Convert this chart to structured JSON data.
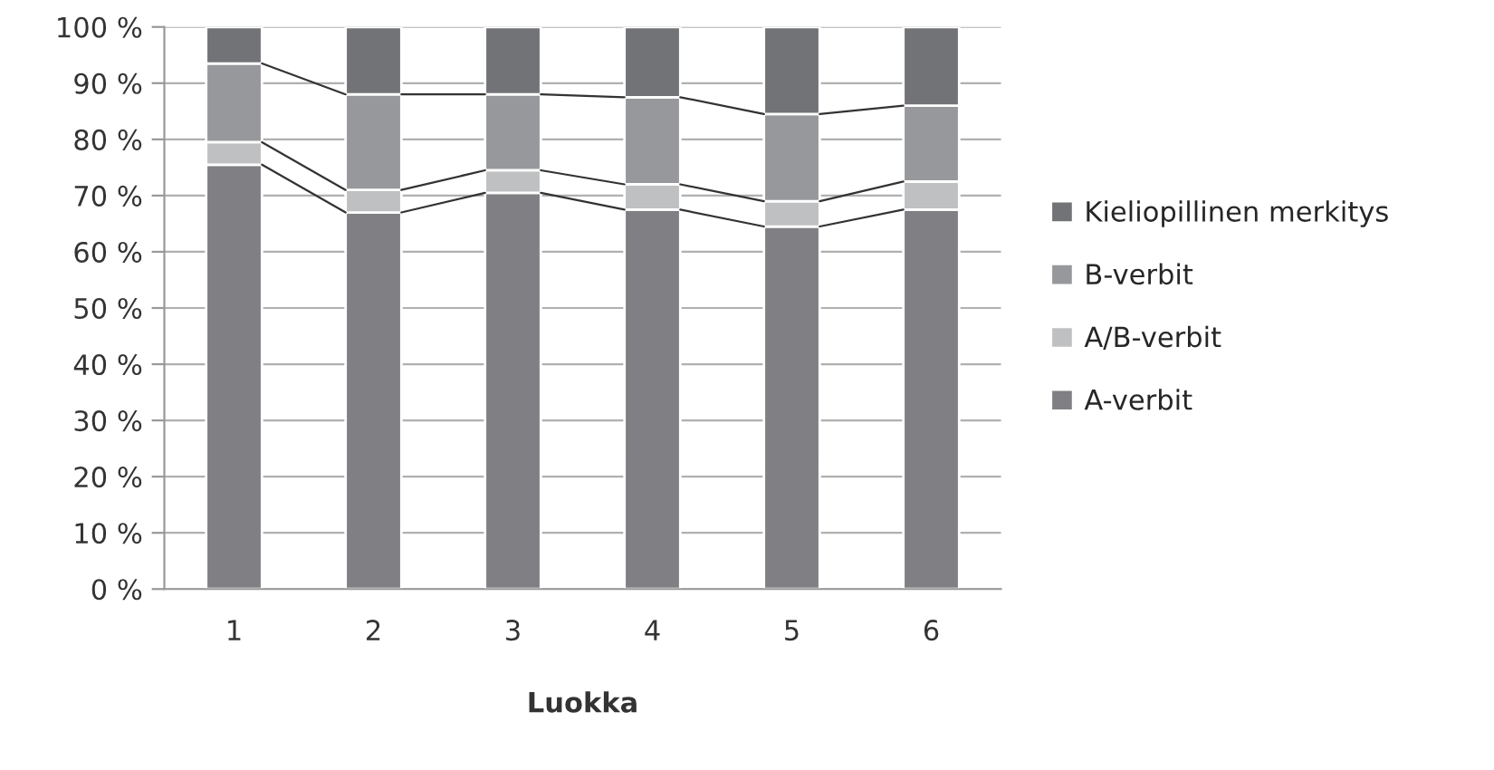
{
  "chart_data": {
    "type": "bar",
    "stacked": true,
    "xlabel": "Luokka",
    "categories": [
      "1",
      "2",
      "3",
      "4",
      "5",
      "6"
    ],
    "series": [
      {
        "name": "A-verbit",
        "color": "#808084",
        "values": [
          75.5,
          67,
          70.5,
          67.5,
          64.5,
          67.5
        ]
      },
      {
        "name": "A/B-verbit",
        "color": "#bfc0c2",
        "values": [
          4,
          4,
          4,
          4.5,
          4.5,
          5
        ]
      },
      {
        "name": "B-verbit",
        "color": "#97989b",
        "values": [
          14,
          17,
          13.5,
          15.5,
          15.5,
          13.5
        ]
      },
      {
        "name": "Kieliopillinen merkitys",
        "color": "#727377",
        "values": [
          6.5,
          12,
          12,
          12.5,
          15.5,
          14
        ]
      }
    ],
    "ylim": [
      0,
      100
    ],
    "yticks": [
      {
        "value": 0,
        "label": "0 %"
      },
      {
        "value": 10,
        "label": "10 %"
      },
      {
        "value": 20,
        "label": "20 %"
      },
      {
        "value": 30,
        "label": "30 %"
      },
      {
        "value": 40,
        "label": "40 %"
      },
      {
        "value": 50,
        "label": "50 %"
      },
      {
        "value": 60,
        "label": "60 %"
      },
      {
        "value": 70,
        "label": "70 %"
      },
      {
        "value": 80,
        "label": "80 %"
      },
      {
        "value": 90,
        "label": "90 %"
      },
      {
        "value": 100,
        "label": "100 %"
      }
    ],
    "grid": "y",
    "legend": "right"
  }
}
